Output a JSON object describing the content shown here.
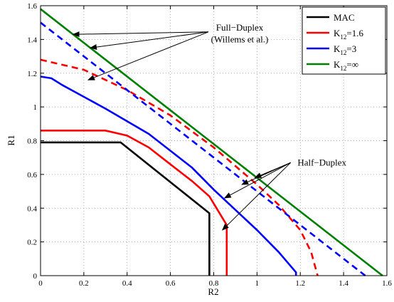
{
  "chart_data": {
    "type": "line",
    "title": "",
    "xlabel": "R2",
    "ylabel": "R1",
    "xlim": [
      0,
      1.6
    ],
    "ylim": [
      0,
      1.6
    ],
    "xticks": [
      0,
      0.2,
      0.4,
      0.6,
      0.8,
      1,
      1.2,
      1.4,
      1.6
    ],
    "yticks": [
      0,
      0.2,
      0.4,
      0.6,
      0.8,
      1,
      1.2,
      1.4,
      1.6
    ],
    "grid": true,
    "legend_position": "top-right",
    "legend": [
      {
        "label": "MAC",
        "color": "#000000"
      },
      {
        "label": "K",
        "sub": "12",
        "suffix": "=1.6",
        "color": "#ff0000"
      },
      {
        "label": "K",
        "sub": "12",
        "suffix": "=3",
        "color": "#0000ff"
      },
      {
        "label": "K",
        "sub": "12",
        "suffix": "=∞",
        "color": "#008000"
      }
    ],
    "series": [
      {
        "color": "#000000",
        "style": "solid",
        "x": [
          0,
          0.37,
          0.78,
          0.78
        ],
        "y": [
          0.79,
          0.79,
          0.37,
          0
        ]
      },
      {
        "color": "#ff0000",
        "style": "solid",
        "x": [
          0,
          0.3,
          0.4,
          0.5,
          0.6,
          0.7,
          0.78,
          0.86,
          0.86
        ],
        "y": [
          0.86,
          0.86,
          0.83,
          0.76,
          0.66,
          0.56,
          0.47,
          0.3,
          0
        ]
      },
      {
        "color": "#0000ff",
        "style": "solid",
        "x": [
          0,
          0.05,
          0.1,
          0.3,
          0.5,
          0.7,
          0.8,
          0.9,
          1.0,
          1.1,
          1.18,
          1.18
        ],
        "y": [
          1.18,
          1.17,
          1.13,
          0.99,
          0.84,
          0.64,
          0.51,
          0.39,
          0.27,
          0.14,
          0.02,
          0
        ]
      },
      {
        "color": "#ff0000",
        "style": "dashed",
        "x": [
          0,
          0.2,
          0.4,
          0.6,
          0.8,
          1.0,
          1.1,
          1.2,
          1.25,
          1.28
        ],
        "y": [
          1.28,
          1.22,
          1.1,
          0.95,
          0.76,
          0.54,
          0.42,
          0.27,
          0.14,
          0
        ]
      },
      {
        "color": "#0000ff",
        "style": "dashed",
        "x": [
          0,
          1.5
        ],
        "y": [
          1.5,
          0
        ]
      },
      {
        "color": "#008000",
        "style": "solid",
        "x": [
          0,
          1.58
        ],
        "y": [
          1.58,
          0
        ]
      }
    ],
    "annotations": [
      {
        "lines": [
          "Full−Duplex",
          "(Willems et al.)"
        ],
        "text_x": 0.92,
        "text_y": [
          1.47,
          1.4
        ],
        "targets": [
          [
            0.15,
            1.43
          ],
          [
            0.23,
            1.35
          ],
          [
            0.22,
            1.16
          ]
        ]
      },
      {
        "lines": [
          "Half−Duplex"
        ],
        "text_x": 1.3,
        "text_y": [
          0.67
        ],
        "targets": [
          [
            0.99,
            0.58
          ],
          [
            0.93,
            0.54
          ],
          [
            0.85,
            0.46
          ],
          [
            0.84,
            0.27
          ]
        ]
      }
    ]
  }
}
